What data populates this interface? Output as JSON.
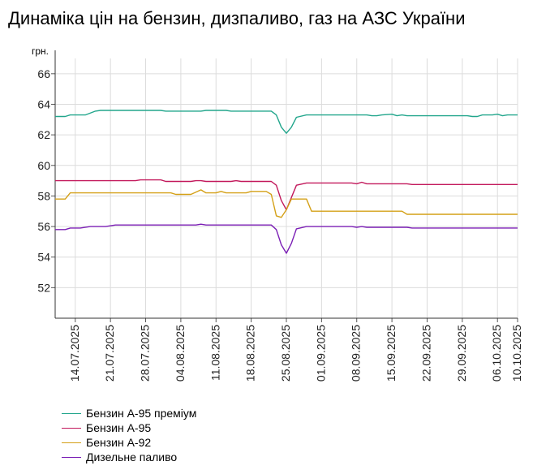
{
  "chart_data": {
    "type": "line",
    "title": "Динаміка цін на бензин, дизпаливо, газ на АЗС України",
    "ylabel": "грн.",
    "xlabel": "",
    "ylim": [
      50,
      67
    ],
    "yticks": [
      52,
      54,
      56,
      58,
      60,
      62,
      64,
      66
    ],
    "xlim": [
      "2025-07-10",
      "2025-10-10"
    ],
    "xticks": [
      "14.07.2025",
      "21.07.2025",
      "28.07.2025",
      "04.08.2025",
      "11.08.2025",
      "18.08.2025",
      "25.08.2025",
      "01.09.2025",
      "08.09.2025",
      "15.09.2025",
      "22.09.2025",
      "29.09.2025",
      "06.10.2025",
      "10.10.2025"
    ],
    "grid": true,
    "legend_position": "bottom",
    "series": [
      {
        "name": "Бензин А-95 преміум",
        "color": "#22a68c",
        "points": [
          [
            "2025-07-10",
            63.2
          ],
          [
            "2025-07-12",
            63.2
          ],
          [
            "2025-07-13",
            63.3
          ],
          [
            "2025-07-16",
            63.3
          ],
          [
            "2025-07-18",
            63.55
          ],
          [
            "2025-07-19",
            63.6
          ],
          [
            "2025-07-26",
            63.6
          ],
          [
            "2025-07-31",
            63.6
          ],
          [
            "2025-08-01",
            63.55
          ],
          [
            "2025-08-08",
            63.55
          ],
          [
            "2025-08-09",
            63.6
          ],
          [
            "2025-08-13",
            63.6
          ],
          [
            "2025-08-14",
            63.55
          ],
          [
            "2025-08-22",
            63.55
          ],
          [
            "2025-08-23",
            63.3
          ],
          [
            "2025-08-24",
            62.5
          ],
          [
            "2025-08-25",
            62.1
          ],
          [
            "2025-08-26",
            62.5
          ],
          [
            "2025-08-27",
            63.15
          ],
          [
            "2025-08-29",
            63.3
          ],
          [
            "2025-09-01",
            63.3
          ],
          [
            "2025-09-08",
            63.3
          ],
          [
            "2025-09-10",
            63.3
          ],
          [
            "2025-09-11",
            63.25
          ],
          [
            "2025-09-12",
            63.25
          ],
          [
            "2025-09-13",
            63.3
          ],
          [
            "2025-09-15",
            63.35
          ],
          [
            "2025-09-16",
            63.25
          ],
          [
            "2025-09-17",
            63.3
          ],
          [
            "2025-09-18",
            63.25
          ],
          [
            "2025-09-30",
            63.25
          ],
          [
            "2025-10-01",
            63.2
          ],
          [
            "2025-10-02",
            63.2
          ],
          [
            "2025-10-03",
            63.3
          ],
          [
            "2025-10-05",
            63.3
          ],
          [
            "2025-10-06",
            63.35
          ],
          [
            "2025-10-07",
            63.25
          ],
          [
            "2025-10-08",
            63.3
          ],
          [
            "2025-10-10",
            63.3
          ]
        ]
      },
      {
        "name": "Бензин А-95",
        "color": "#c2185b",
        "points": [
          [
            "2025-07-10",
            59.0
          ],
          [
            "2025-07-26",
            59.0
          ],
          [
            "2025-07-27",
            59.05
          ],
          [
            "2025-07-31",
            59.05
          ],
          [
            "2025-08-01",
            58.95
          ],
          [
            "2025-08-06",
            58.95
          ],
          [
            "2025-08-07",
            59.0
          ],
          [
            "2025-08-08",
            59.0
          ],
          [
            "2025-08-09",
            58.95
          ],
          [
            "2025-08-14",
            58.95
          ],
          [
            "2025-08-15",
            59.0
          ],
          [
            "2025-08-16",
            58.95
          ],
          [
            "2025-08-22",
            58.95
          ],
          [
            "2025-08-23",
            58.7
          ],
          [
            "2025-08-24",
            57.7
          ],
          [
            "2025-08-25",
            57.1
          ],
          [
            "2025-08-26",
            57.9
          ],
          [
            "2025-08-27",
            58.7
          ],
          [
            "2025-08-29",
            58.85
          ],
          [
            "2025-09-07",
            58.85
          ],
          [
            "2025-09-08",
            58.8
          ],
          [
            "2025-09-09",
            58.9
          ],
          [
            "2025-09-10",
            58.8
          ],
          [
            "2025-09-18",
            58.8
          ],
          [
            "2025-09-19",
            58.75
          ],
          [
            "2025-10-10",
            58.75
          ]
        ]
      },
      {
        "name": "Бензин А-92",
        "color": "#d4a017",
        "points": [
          [
            "2025-07-10",
            57.8
          ],
          [
            "2025-07-12",
            57.8
          ],
          [
            "2025-07-13",
            58.2
          ],
          [
            "2025-07-16",
            58.2
          ],
          [
            "2025-08-02",
            58.2
          ],
          [
            "2025-08-03",
            58.1
          ],
          [
            "2025-08-06",
            58.1
          ],
          [
            "2025-08-08",
            58.4
          ],
          [
            "2025-08-09",
            58.2
          ],
          [
            "2025-08-11",
            58.2
          ],
          [
            "2025-08-12",
            58.3
          ],
          [
            "2025-08-13",
            58.2
          ],
          [
            "2025-08-17",
            58.2
          ],
          [
            "2025-08-18",
            58.3
          ],
          [
            "2025-08-21",
            58.3
          ],
          [
            "2025-08-22",
            58.1
          ],
          [
            "2025-08-23",
            56.7
          ],
          [
            "2025-08-24",
            56.6
          ],
          [
            "2025-08-25",
            57.1
          ],
          [
            "2025-08-26",
            57.8
          ],
          [
            "2025-08-29",
            57.8
          ],
          [
            "2025-08-30",
            57.0
          ],
          [
            "2025-09-13",
            57.0
          ],
          [
            "2025-09-14",
            57.0
          ],
          [
            "2025-09-17",
            57.0
          ],
          [
            "2025-09-18",
            56.8
          ],
          [
            "2025-10-10",
            56.8
          ]
        ]
      },
      {
        "name": "Дизельне паливо",
        "color": "#7b1fb5",
        "points": [
          [
            "2025-07-10",
            55.8
          ],
          [
            "2025-07-12",
            55.8
          ],
          [
            "2025-07-13",
            55.9
          ],
          [
            "2025-07-15",
            55.9
          ],
          [
            "2025-07-17",
            56.0
          ],
          [
            "2025-07-20",
            56.0
          ],
          [
            "2025-07-22",
            56.1
          ],
          [
            "2025-08-07",
            56.1
          ],
          [
            "2025-08-08",
            56.15
          ],
          [
            "2025-08-09",
            56.1
          ],
          [
            "2025-08-22",
            56.1
          ],
          [
            "2025-08-23",
            55.8
          ],
          [
            "2025-08-24",
            54.8
          ],
          [
            "2025-08-25",
            54.25
          ],
          [
            "2025-08-26",
            54.9
          ],
          [
            "2025-08-27",
            55.85
          ],
          [
            "2025-08-29",
            56.0
          ],
          [
            "2025-09-07",
            56.0
          ],
          [
            "2025-09-08",
            55.95
          ],
          [
            "2025-09-09",
            56.0
          ],
          [
            "2025-09-10",
            55.95
          ],
          [
            "2025-09-18",
            55.95
          ],
          [
            "2025-09-19",
            55.9
          ],
          [
            "2025-10-10",
            55.9
          ]
        ]
      }
    ]
  }
}
